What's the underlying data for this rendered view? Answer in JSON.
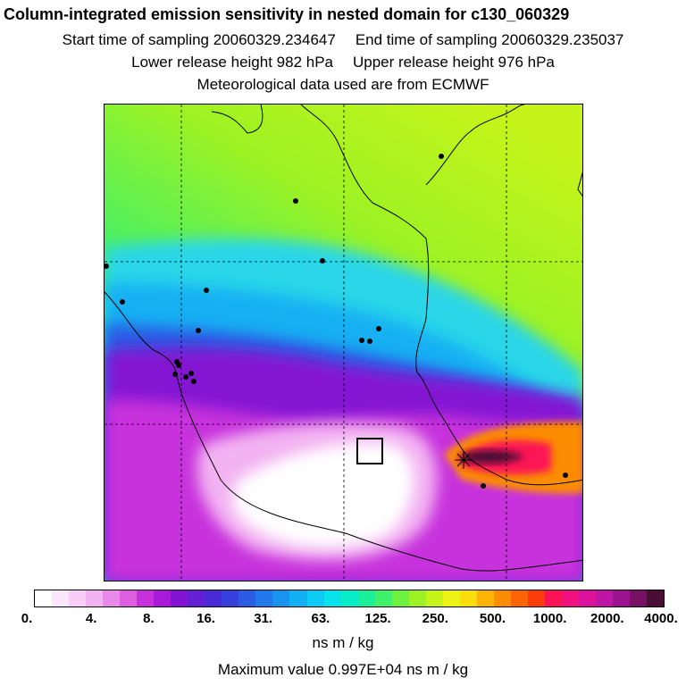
{
  "header": {
    "title": "Column-integrated emission sensitivity in nested domain for c130_060329",
    "start_label": "Start time of sampling 20060329.234647",
    "end_label": "End time of sampling 20060329.235037",
    "lower_label": "Lower release height  982 hPa",
    "upper_label": "Upper release height  976 hPa",
    "met_label": "Meteorological data used are from ECMWF"
  },
  "colorbar": {
    "colors": [
      "#ffffff",
      "#fce6fb",
      "#f8cdf7",
      "#f3b2f2",
      "#e98ae8",
      "#dd5fe0",
      "#c731dc",
      "#a81ad8",
      "#8414d3",
      "#6420d3",
      "#4a2ad6",
      "#3740db",
      "#2c5be4",
      "#2178ea",
      "#1894ef",
      "#12b0f3",
      "#0dcbf4",
      "#08e2ea",
      "#08ecc8",
      "#1cef9a",
      "#3ff06a",
      "#6ef13e",
      "#9cf224",
      "#c6f41a",
      "#ecf214",
      "#fbdc0c",
      "#fbb406",
      "#fb8c04",
      "#fb6404",
      "#fb3c08",
      "#fb1455",
      "#f0117f",
      "#db139c",
      "#bf15a6",
      "#9c148f",
      "#761163",
      "#4a0e35"
    ],
    "tick_labels": [
      "0.",
      "4.",
      "8.",
      "16.",
      "31.",
      "63.",
      "125.",
      "250.",
      "500.",
      "1000.",
      "2000.",
      "4000."
    ],
    "units": "ns m / kg",
    "max_value": "Maximum value  0.997E+04 ns m / kg"
  },
  "map": {
    "receptor_icon": "square-box-icon",
    "release_marker_icon": "plus-cross-icon",
    "city_icon": "dot-icon",
    "gridline_style": "dashed",
    "gridlines_x_count": 3,
    "gridlines_y_count": 2
  }
}
